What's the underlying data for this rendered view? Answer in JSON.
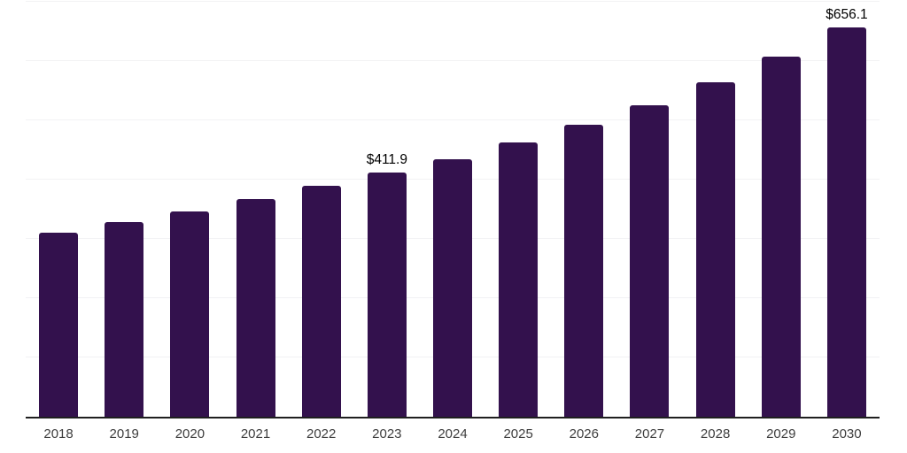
{
  "chart_data": {
    "type": "bar",
    "title": "",
    "xlabel": "",
    "ylabel": "",
    "categories": [
      "2018",
      "2019",
      "2020",
      "2021",
      "2022",
      "2023",
      "2024",
      "2025",
      "2026",
      "2027",
      "2028",
      "2029",
      "2030"
    ],
    "values": [
      310,
      329,
      347,
      367,
      389,
      411.9,
      435,
      462,
      492,
      525,
      564,
      607,
      656.1
    ],
    "data_labels": [
      null,
      null,
      null,
      null,
      null,
      "$411.9",
      null,
      null,
      null,
      null,
      null,
      null,
      "$656.1"
    ],
    "ylim": [
      0,
      700
    ],
    "gridline_step": 100,
    "grid": true,
    "legend": false,
    "value_prefix": "$",
    "colors": {
      "bar": "#33114d",
      "gridline": "#f2f2f4",
      "axis_line": "#1f1f1f",
      "tick_label": "#3d3d3d",
      "data_label": "#000000",
      "background": "#ffffff"
    }
  }
}
